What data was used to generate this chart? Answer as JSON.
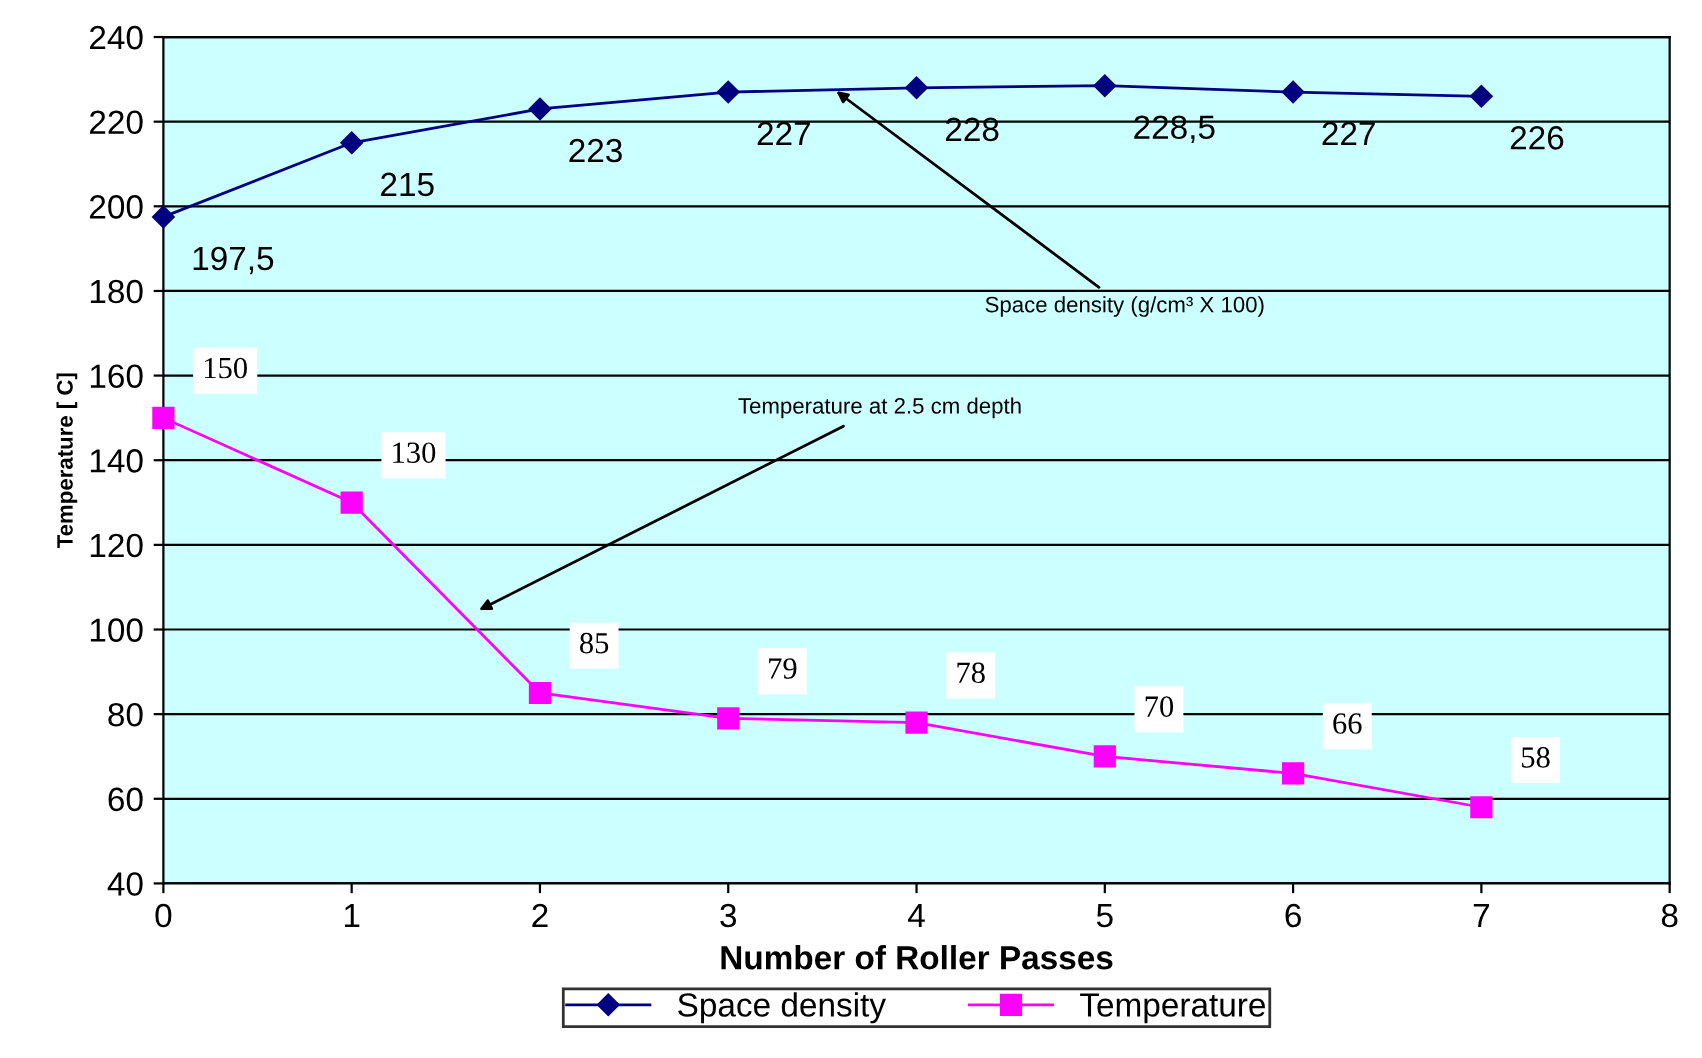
{
  "chart_data": {
    "type": "line",
    "xlabel": "Number of Roller Passes",
    "ylabel": "Temperature [ C]",
    "x": [
      0,
      1,
      2,
      3,
      4,
      5,
      6,
      7
    ],
    "series": [
      {
        "name": "Space density",
        "color": "#000080",
        "marker": "diamond",
        "values": [
          197.5,
          215,
          223,
          227,
          228,
          228.5,
          227,
          226
        ],
        "value_labels": [
          "197,5",
          "215",
          "223",
          "227",
          "228",
          "228,5",
          "227",
          "226"
        ]
      },
      {
        "name": "Temperature",
        "color": "#ff00ff",
        "marker": "square",
        "values": [
          150,
          130,
          85,
          79,
          78,
          70,
          66,
          58
        ],
        "value_labels": [
          "150",
          "130",
          "85",
          "79",
          "78",
          "70",
          "66",
          "58"
        ]
      }
    ],
    "annotations": [
      {
        "text": "Space density (g/cm³ X 100)",
        "x": 3.55,
        "y": 228
      },
      {
        "text": "Temperature at 2.5 cm depth",
        "x": 1.65,
        "y": 104
      }
    ],
    "xlim": [
      0,
      8
    ],
    "xticks": [
      0,
      1,
      2,
      3,
      4,
      5,
      6,
      7,
      8
    ],
    "ylim": [
      40,
      240
    ],
    "yticks": [
      40,
      60,
      80,
      100,
      120,
      140,
      160,
      180,
      200,
      220,
      240
    ],
    "grid": "y",
    "legend": "bottom",
    "line_style": "solid"
  }
}
